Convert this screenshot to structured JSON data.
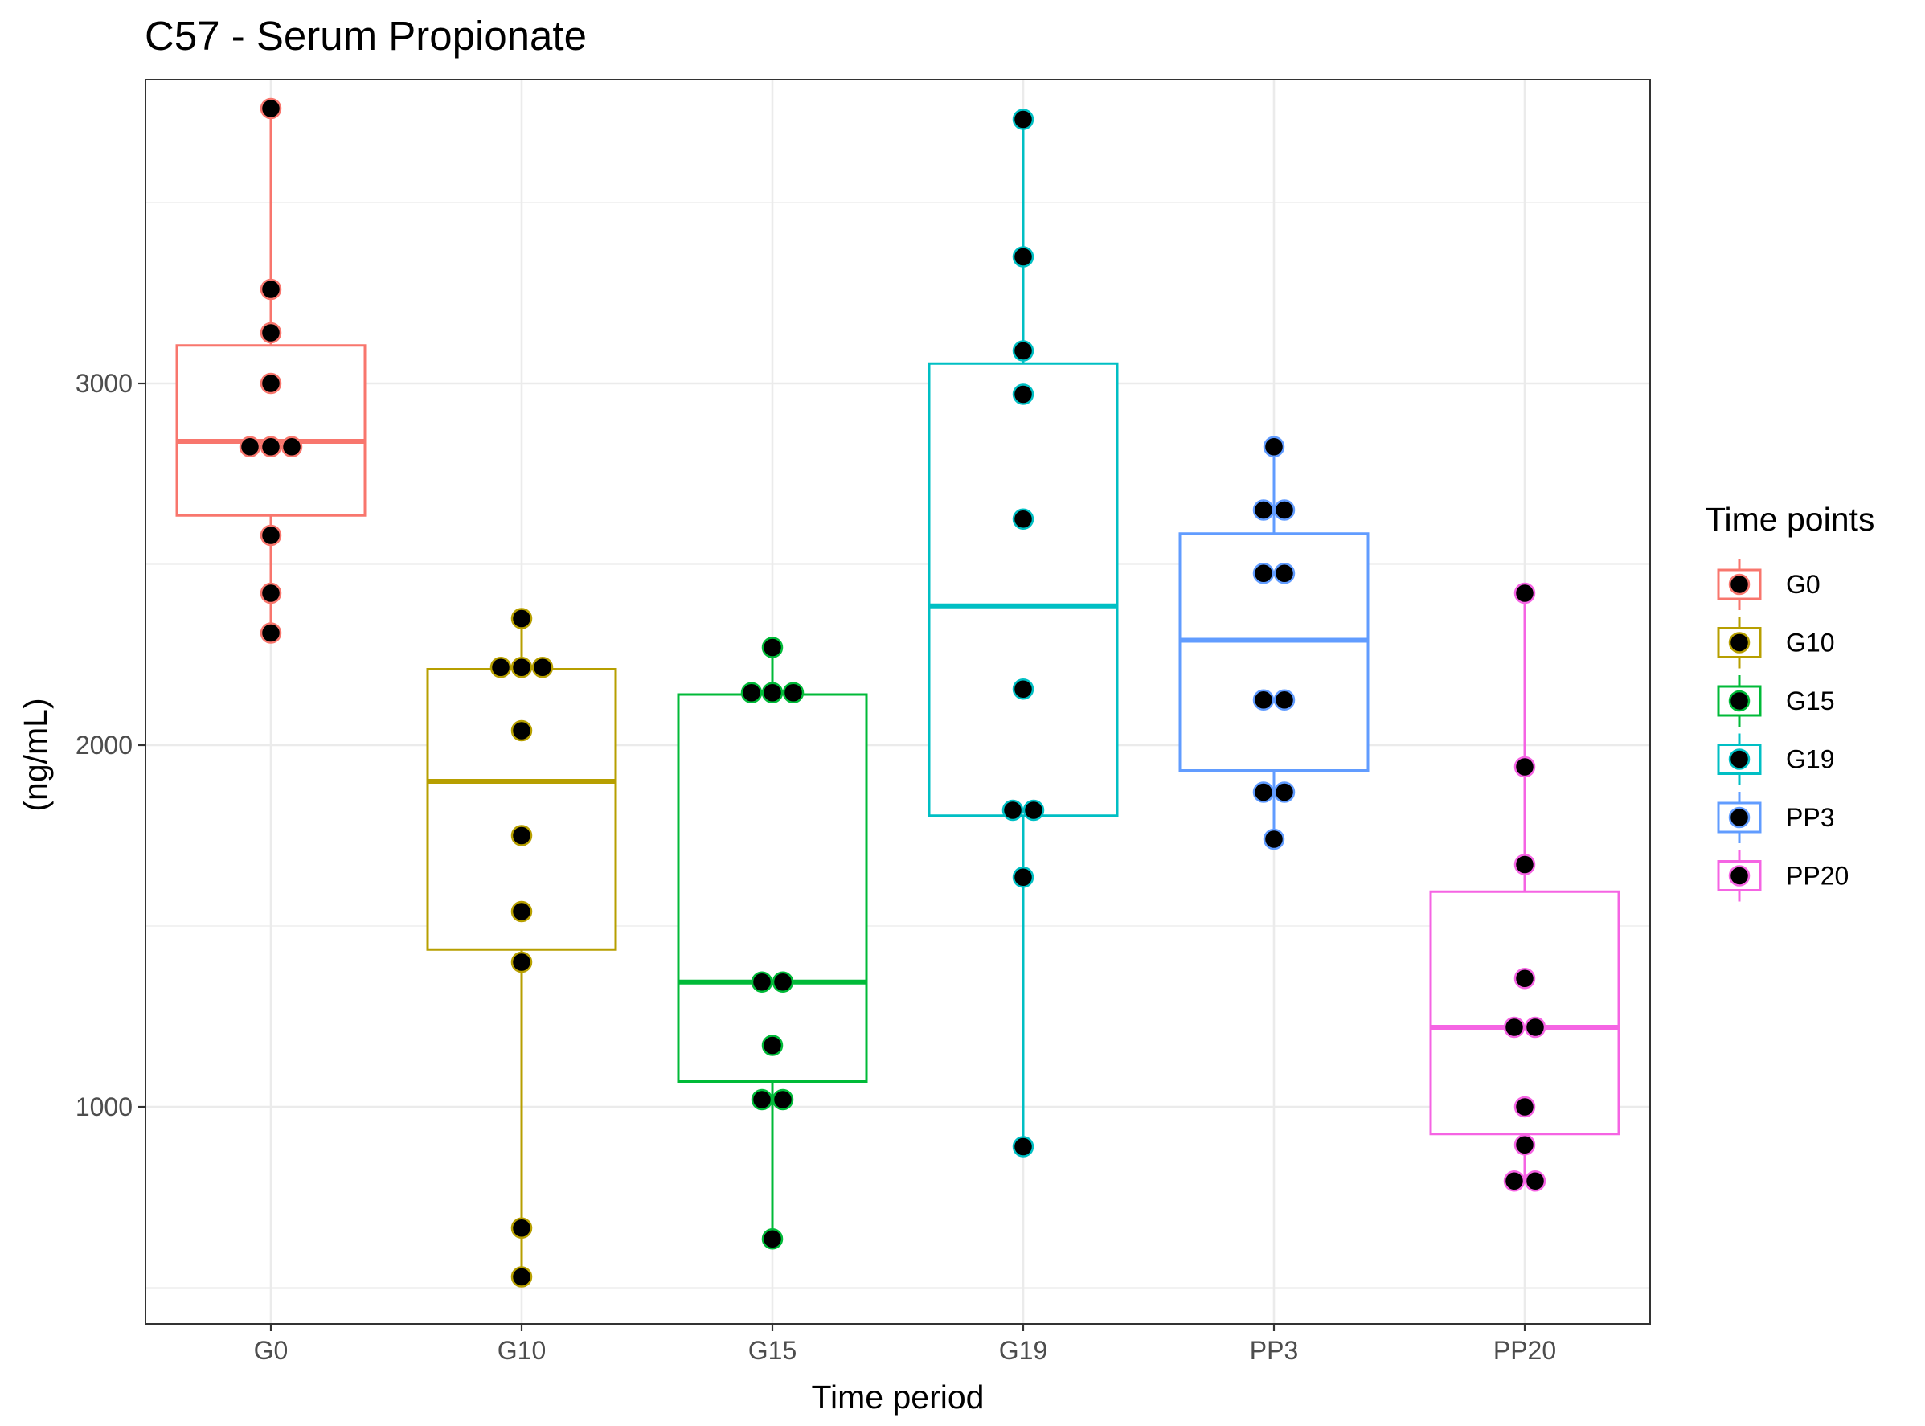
{
  "chart_data": {
    "type": "box",
    "title": "C57 - Serum Propionate",
    "xlabel": "Time period",
    "ylabel": "(ng/mL)",
    "ylim": [
      400,
      3840
    ],
    "yticks": [
      1000,
      2000,
      3000
    ],
    "ytick_labels": [
      "1000",
      "2000",
      "3000"
    ],
    "grid": true,
    "legend": {
      "title": "Time points",
      "position": "right"
    },
    "categories": [
      "G0",
      "G10",
      "G15",
      "G19",
      "PP3",
      "PP20"
    ],
    "colors": {
      "G0": "#F8766D",
      "G10": "#B79F00",
      "G15": "#00BA38",
      "G19": "#00BFC4",
      "PP3": "#619CFF",
      "PP20": "#F564E3"
    },
    "series": [
      {
        "name": "G0",
        "q1": 2635,
        "median": 2840,
        "q3": 3105,
        "whisker_low": 2310,
        "whisker_high": 3760,
        "points": [
          3760,
          3260,
          3140,
          3000,
          2825,
          2825,
          2825,
          2580,
          2420,
          2310
        ]
      },
      {
        "name": "G10",
        "q1": 1435,
        "median": 1900,
        "q3": 2210,
        "whisker_low": 530,
        "whisker_high": 2350,
        "points": [
          2350,
          2215,
          2215,
          2215,
          2040,
          1750,
          1540,
          1400,
          665,
          530
        ]
      },
      {
        "name": "G15",
        "q1": 1070,
        "median": 1345,
        "q3": 2140,
        "whisker_low": 635,
        "whisker_high": 2270,
        "points": [
          2270,
          2145,
          2145,
          2145,
          1345,
          1345,
          1170,
          1020,
          1020,
          635
        ]
      },
      {
        "name": "G19",
        "q1": 1805,
        "median": 2385,
        "q3": 3055,
        "whisker_low": 890,
        "whisker_high": 3730,
        "points": [
          3730,
          3350,
          3090,
          2970,
          2625,
          2155,
          1820,
          1820,
          1635,
          890
        ]
      },
      {
        "name": "PP3",
        "q1": 1930,
        "median": 2290,
        "q3": 2585,
        "whisker_low": 1740,
        "whisker_high": 2825,
        "points": [
          2825,
          2650,
          2650,
          2475,
          2475,
          2125,
          2125,
          1870,
          1870,
          1740
        ]
      },
      {
        "name": "PP20",
        "q1": 925,
        "median": 1220,
        "q3": 1595,
        "whisker_low": 795,
        "whisker_high": 2420,
        "points": [
          2420,
          1940,
          1670,
          1355,
          1220,
          1220,
          1000,
          895,
          795,
          795
        ]
      }
    ]
  }
}
